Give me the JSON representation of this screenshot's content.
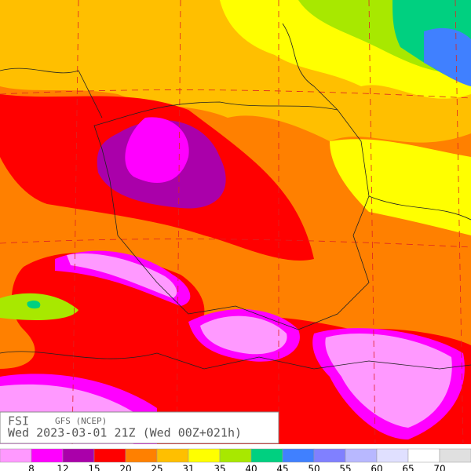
{
  "map": {
    "product": "FSI",
    "model": "GFS (NCEP)",
    "valid_time": "Wed 2023-03-01 21Z (Wed 00Z+021h)"
  },
  "colorbar": {
    "colors": [
      "#ff99ff",
      "#ff00ff",
      "#aa00aa",
      "#ff0000",
      "#ff8000",
      "#ffbf00",
      "#ffff00",
      "#a8e800",
      "#00d080",
      "#4080ff",
      "#8080ff",
      "#b8b8ff",
      "#e0e0ff",
      "#ffffff",
      "#e0e0e0"
    ],
    "labels": [
      8,
      12,
      15,
      20,
      25,
      31,
      35,
      40,
      45,
      50,
      55,
      60,
      65,
      70
    ]
  }
}
